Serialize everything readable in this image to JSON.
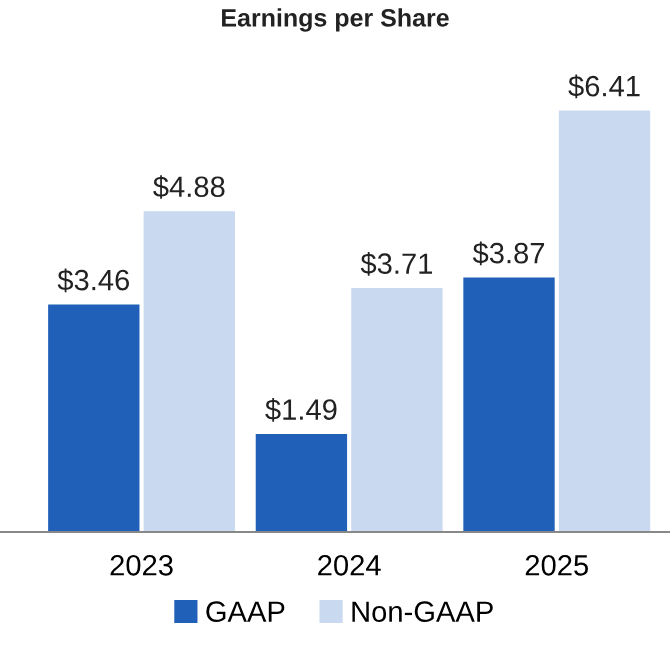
{
  "chart_data": {
    "type": "bar",
    "title": "Earnings per Share",
    "categories": [
      "2023",
      "2024",
      "2025"
    ],
    "series": [
      {
        "name": "GAAP",
        "color": "#2060b8",
        "values": [
          3.46,
          1.49,
          3.87
        ],
        "value_labels": [
          "$3.46",
          "$1.49",
          "$3.87"
        ]
      },
      {
        "name": "Non-GAAP",
        "color": "#c9d9f0",
        "values": [
          4.88,
          3.71,
          6.41
        ],
        "value_labels": [
          "$4.88",
          "$3.71",
          "$6.41"
        ]
      }
    ],
    "tick_labels": "x",
    "grid": false,
    "legend": "bottom"
  }
}
